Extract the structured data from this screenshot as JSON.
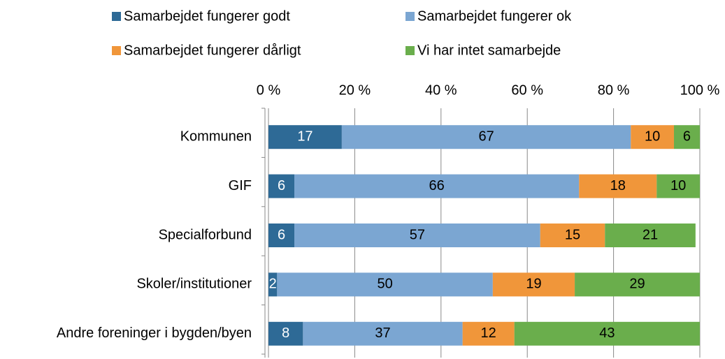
{
  "chart_data": {
    "type": "stacked_barh",
    "categories": [
      "Kommunen",
      "GIF",
      "Specialforbund",
      "Skoler/institutioner",
      "Andre foreninger i bygden/byen"
    ],
    "series": [
      {
        "name": "Samarbejdet fungerer godt",
        "color": "#2e6a96",
        "values": [
          17,
          6,
          6,
          2,
          8
        ]
      },
      {
        "name": "Samarbejdet fungerer ok",
        "color": "#7ba6d2",
        "values": [
          67,
          66,
          57,
          50,
          37
        ]
      },
      {
        "name": "Samarbejdet fungerer dårligt",
        "color": "#f0963a",
        "values": [
          10,
          18,
          15,
          19,
          12
        ]
      },
      {
        "name": "Vi har intet samarbejde",
        "color": "#6aae4c",
        "values": [
          6,
          10,
          21,
          29,
          43
        ]
      }
    ],
    "xlim": [
      0,
      100
    ],
    "xticks": [
      {
        "value": 0,
        "label": "0 %"
      },
      {
        "value": 20,
        "label": "20 %"
      },
      {
        "value": 40,
        "label": "40 %"
      },
      {
        "value": 60,
        "label": "60 %"
      },
      {
        "value": 80,
        "label": "80 %"
      },
      {
        "value": 100,
        "label": "100 %"
      }
    ],
    "grid": true,
    "legend": "top"
  }
}
